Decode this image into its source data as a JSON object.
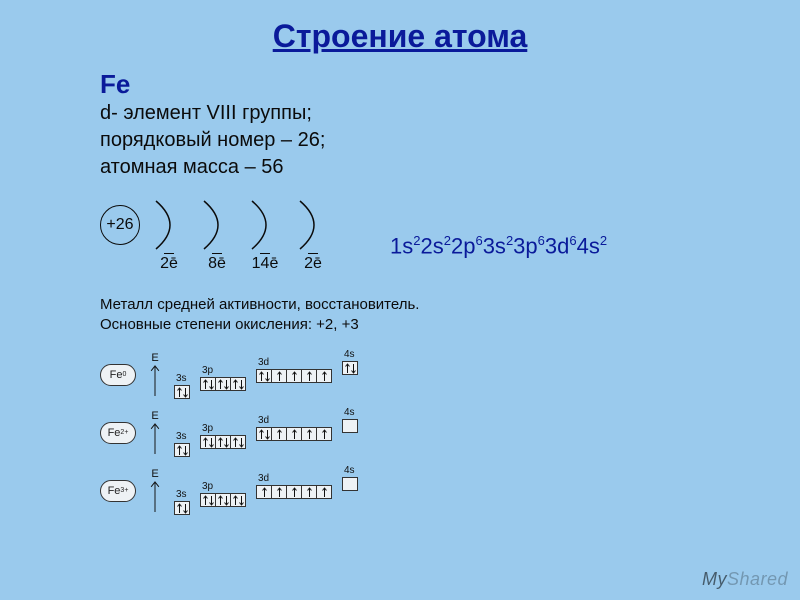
{
  "colors": {
    "background": "#9acaed",
    "title": "#0a1a9a",
    "text": "#0b0b0b",
    "accent": "#0a1a9a",
    "box_border": "#333333",
    "box_fill": "#eef2f5"
  },
  "title": "Строение атома",
  "element": {
    "symbol": "Fe",
    "line1": "d- элемент VIII группы;",
    "line2": "порядковый номер – 26;",
    "line3": "атомная масса – 56"
  },
  "nucleus_label": "+26",
  "shells": [
    {
      "electrons": "2ē"
    },
    {
      "electrons": "8ē"
    },
    {
      "electrons": "14ē"
    },
    {
      "electrons": "2ē"
    }
  ],
  "electron_config": [
    {
      "sub": "1s",
      "n": "2"
    },
    {
      "sub": "2s",
      "n": "2"
    },
    {
      "sub": "2p",
      "n": "6"
    },
    {
      "sub": "3s",
      "n": "2"
    },
    {
      "sub": "3p",
      "n": "6"
    },
    {
      "sub": "3d",
      "n": "6"
    },
    {
      "sub": "4s",
      "n": "2"
    }
  ],
  "description": {
    "line1": "Металл средней активности, восстановитель.",
    "line2": "Основные степени окисления: +2, +3"
  },
  "axis_label": "E",
  "orbital_rows": [
    {
      "species_base": "Fe",
      "species_sup": "0",
      "sublevels": [
        {
          "label": "3s",
          "offset": 0,
          "boxes": [
            [
              "u",
              "d"
            ]
          ]
        },
        {
          "label": "3p",
          "offset": 8,
          "boxes": [
            [
              "u",
              "d"
            ],
            [
              "u",
              "d"
            ],
            [
              "u",
              "d"
            ]
          ]
        },
        {
          "label": "3d",
          "offset": 16,
          "boxes": [
            [
              "u",
              "d"
            ],
            [
              "u"
            ],
            [
              "u"
            ],
            [
              "u"
            ],
            [
              "u"
            ]
          ]
        },
        {
          "label": "4s",
          "offset": 24,
          "boxes": [
            [
              "u",
              "d"
            ]
          ]
        }
      ]
    },
    {
      "species_base": "Fe",
      "species_sup": "2+",
      "sublevels": [
        {
          "label": "3s",
          "offset": 0,
          "boxes": [
            [
              "u",
              "d"
            ]
          ]
        },
        {
          "label": "3p",
          "offset": 8,
          "boxes": [
            [
              "u",
              "d"
            ],
            [
              "u",
              "d"
            ],
            [
              "u",
              "d"
            ]
          ]
        },
        {
          "label": "3d",
          "offset": 16,
          "boxes": [
            [
              "u",
              "d"
            ],
            [
              "u"
            ],
            [
              "u"
            ],
            [
              "u"
            ],
            [
              "u"
            ]
          ]
        },
        {
          "label": "4s",
          "offset": 24,
          "boxes": [
            []
          ]
        }
      ]
    },
    {
      "species_base": "Fe",
      "species_sup": "3+",
      "sublevels": [
        {
          "label": "3s",
          "offset": 0,
          "boxes": [
            [
              "u",
              "d"
            ]
          ]
        },
        {
          "label": "3p",
          "offset": 8,
          "boxes": [
            [
              "u",
              "d"
            ],
            [
              "u",
              "d"
            ],
            [
              "u",
              "d"
            ]
          ]
        },
        {
          "label": "3d",
          "offset": 16,
          "boxes": [
            [
              "u"
            ],
            [
              "u"
            ],
            [
              "u"
            ],
            [
              "u"
            ],
            [
              "u"
            ]
          ]
        },
        {
          "label": "4s",
          "offset": 24,
          "boxes": [
            []
          ]
        }
      ]
    }
  ],
  "watermark": {
    "part1": "My",
    "part2": "Shared"
  }
}
